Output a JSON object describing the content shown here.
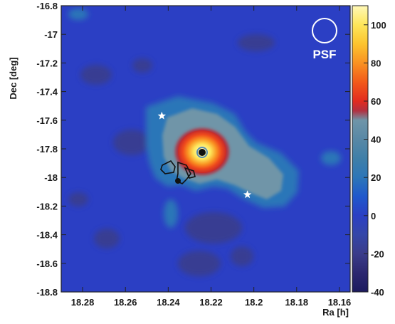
{
  "chart_data": {
    "type": "heatmap",
    "xlabel": "Ra [h]",
    "ylabel": "Dec [deg]",
    "xlim": [
      18.29,
      18.155
    ],
    "ylim": [
      -18.8,
      -16.8
    ],
    "x_ticks": [
      18.28,
      18.26,
      18.24,
      18.22,
      18.2,
      18.18,
      18.16
    ],
    "x_tick_labels": [
      "18.28",
      "18.26",
      "18.24",
      "18.22",
      "18.2",
      "18.18",
      "18.16"
    ],
    "y_ticks": [
      -16.8,
      -17,
      -17.2,
      -17.4,
      -17.6,
      -17.8,
      -18,
      -18.2,
      -18.4,
      -18.6,
      -18.8
    ],
    "y_tick_labels": [
      "-16.8",
      "-17",
      "-17.2",
      "-17.4",
      "-17.6",
      "-17.8",
      "-18",
      "-18.2",
      "-18.4",
      "-18.6",
      "-18.8"
    ],
    "colorbar": {
      "range": [
        -40,
        110
      ],
      "ticks": [
        -40,
        -20,
        0,
        20,
        40,
        60,
        80,
        100
      ],
      "tick_labels": [
        "-40",
        "-20",
        "0",
        "20",
        "40",
        "60",
        "80",
        "100"
      ],
      "color_stops": [
        {
          "value": -40,
          "color": "#1c1a5e"
        },
        {
          "value": -30,
          "color": "#2c2870"
        },
        {
          "value": -20,
          "color": "#3a3c8a"
        },
        {
          "value": -10,
          "color": "#3446a8"
        },
        {
          "value": 0,
          "color": "#2b3fc4"
        },
        {
          "value": 10,
          "color": "#2058cc"
        },
        {
          "value": 20,
          "color": "#2c76b8"
        },
        {
          "value": 30,
          "color": "#3f7fa8"
        },
        {
          "value": 40,
          "color": "#5888a6"
        },
        {
          "value": 50,
          "color": "#6f95a8"
        },
        {
          "value": 55,
          "color": "#b23040"
        },
        {
          "value": 60,
          "color": "#e22b1e"
        },
        {
          "value": 70,
          "color": "#f25a1a"
        },
        {
          "value": 80,
          "color": "#f99222"
        },
        {
          "value": 90,
          "color": "#fcc42e"
        },
        {
          "value": 100,
          "color": "#fde65a"
        },
        {
          "value": 110,
          "color": "#fff8b8"
        }
      ]
    },
    "background_level": 0,
    "peak": {
      "ra": 18.222,
      "dec": -17.83,
      "value": 110
    },
    "stars": [
      {
        "ra": 18.243,
        "dec": -17.57
      },
      {
        "ra": 18.203,
        "dec": -18.12
      }
    ],
    "psf_label": "PSF",
    "psf_circle": {
      "ra": 18.167,
      "dec": -16.97
    }
  }
}
